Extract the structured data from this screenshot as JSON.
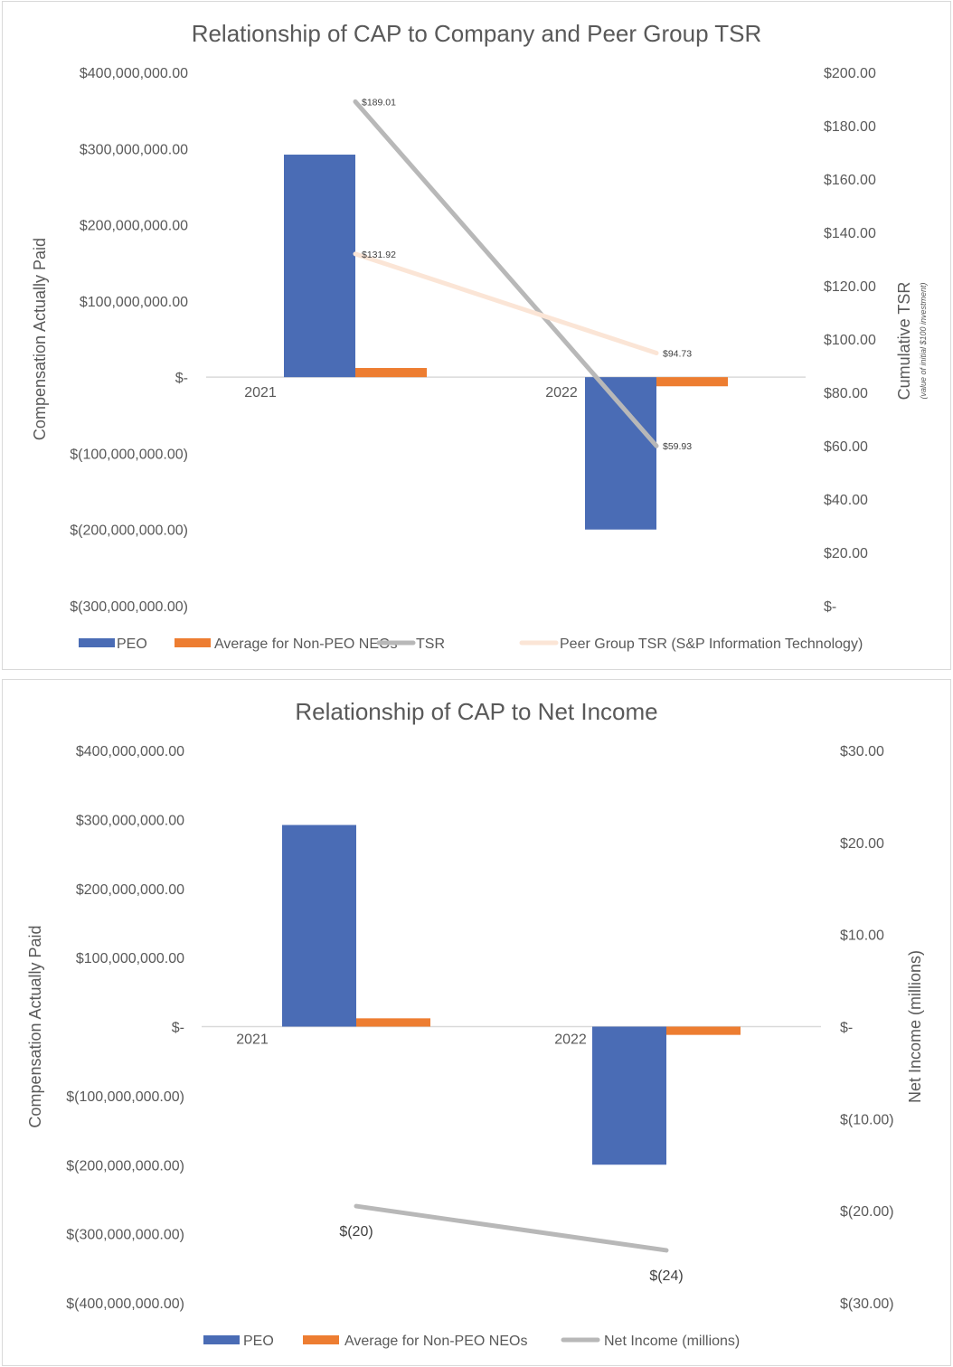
{
  "colors": {
    "peo": "#4a6cb5",
    "non_peo": "#ed7d31",
    "tsr": "#b8b8b8",
    "peer": "#fbe5d6",
    "zero": "#d9d9d9"
  },
  "chart_data": [
    {
      "type": "bar",
      "title": "Relationship of CAP to Company and Peer Group TSR",
      "categories": [
        "2021",
        "2022"
      ],
      "ylabel": "Compensation Actually Paid",
      "y2label": "Cumulative TSR",
      "y2sublabel": "(value of initial $100 investment)",
      "ylim": [
        -300000000,
        400000000
      ],
      "y2lim": [
        0,
        200
      ],
      "yticks": [
        "$400,000,000.00",
        "$300,000,000.00",
        "$200,000,000.00",
        "$100,000,000.00",
        "$-",
        "$(100,000,000.00)",
        "$(200,000,000.00)",
        "$(300,000,000.00)"
      ],
      "y2ticks": [
        "$200.00",
        "$180.00",
        "$160.00",
        "$140.00",
        "$120.00",
        "$100.00",
        "$80.00",
        "$60.00",
        "$40.00",
        "$20.00",
        "$-"
      ],
      "series": [
        {
          "name": "PEO",
          "kind": "bar",
          "axis": "left",
          "values": [
            292000000,
            -200000000
          ]
        },
        {
          "name": "Average for Non-PEO NEOs",
          "kind": "bar",
          "axis": "left",
          "values": [
            12000000,
            -12000000
          ]
        },
        {
          "name": "TSR",
          "kind": "line",
          "axis": "right",
          "values": [
            189.01,
            59.93
          ],
          "labels": [
            "$189.01",
            "$59.93"
          ]
        },
        {
          "name": "Peer Group TSR (S&P Information Technology)",
          "kind": "line",
          "axis": "right",
          "values": [
            131.92,
            94.73
          ],
          "labels": [
            "$131.92",
            "$94.73"
          ]
        }
      ]
    },
    {
      "type": "bar",
      "title": "Relationship of CAP to Net Income",
      "categories": [
        "2021",
        "2022"
      ],
      "ylabel": "Compensation Actually Paid",
      "y2label": "Net Income (millions)",
      "ylim": [
        -400000000,
        400000000
      ],
      "y2lim": [
        -30,
        30
      ],
      "yticks": [
        "$400,000,000.00",
        "$300,000,000.00",
        "$200,000,000.00",
        "$100,000,000.00",
        "$-",
        "$(100,000,000.00)",
        "$(200,000,000.00)",
        "$(300,000,000.00)",
        "$(400,000,000.00)"
      ],
      "y2ticks": [
        "$30.00",
        "$20.00",
        "$10.00",
        "$-",
        "$(10.00)",
        "$(20.00)",
        "$(30.00)"
      ],
      "series": [
        {
          "name": "PEO",
          "kind": "bar",
          "axis": "left",
          "values": [
            292000000,
            -200000000
          ]
        },
        {
          "name": "Average for Non-PEO NEOs",
          "kind": "bar",
          "axis": "left",
          "values": [
            12000000,
            -12000000
          ]
        },
        {
          "name": "Net Income (millions)",
          "kind": "line",
          "axis": "right",
          "values": [
            -19.5,
            -24.3
          ],
          "labels": [
            "$(20)",
            "$(24)"
          ]
        }
      ]
    }
  ]
}
